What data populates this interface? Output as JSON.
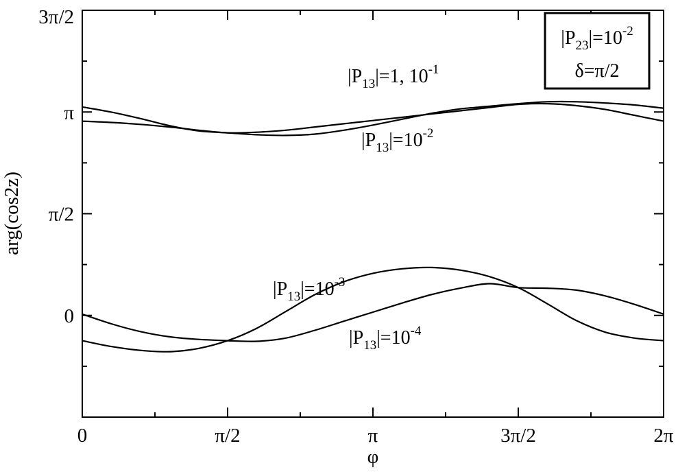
{
  "chart_data": {
    "type": "line",
    "xlabel": "φ",
    "ylabel": "arg(cos2z)",
    "xlim": [
      0,
      6.2832
    ],
    "ylim": [
      -1.5708,
      4.7124
    ],
    "grid": false,
    "x_ticks": [
      {
        "value": 0,
        "label": "0"
      },
      {
        "value": 1.5708,
        "label": "π/2"
      },
      {
        "value": 3.1416,
        "label": "π"
      },
      {
        "value": 4.7124,
        "label": "3π/2"
      },
      {
        "value": 6.2832,
        "label": "2π"
      }
    ],
    "y_ticks": [
      {
        "value": 0,
        "label": "0"
      },
      {
        "value": 1.5708,
        "label": "π/2"
      },
      {
        "value": 3.1416,
        "label": "π"
      },
      {
        "value": 4.7124,
        "label": "3π/2"
      }
    ],
    "legend": {
      "placement": "top-right",
      "line1": {
        "base": "|P",
        "sub": "23",
        "mid": "|=10",
        "sup": "-2"
      },
      "line2": "δ=π/2"
    },
    "annotations": [
      {
        "base": "|P",
        "sub": "13",
        "mid": "|=1, 10",
        "sup": "-1"
      },
      {
        "base": "|P",
        "sub": "13",
        "mid": "|=10",
        "sup": "-2"
      },
      {
        "base": "|P",
        "sub": "13",
        "mid": "|=10",
        "sup": "-3"
      },
      {
        "base": "|P",
        "sub": "13",
        "mid": "|=10",
        "sup": "-4"
      }
    ],
    "series": [
      {
        "x": [
          0,
          0.3142,
          0.6283,
          0.9425,
          1.2566,
          1.5708,
          1.885,
          2.1991,
          2.5133,
          2.8274,
          3.1416,
          3.4558,
          3.7699,
          4.0841,
          4.3982,
          4.7124,
          5.0265,
          5.3407,
          5.6549,
          5.969,
          6.2832
        ],
        "y": [
          3.0,
          2.98,
          2.95,
          2.91,
          2.86,
          2.82,
          2.83,
          2.86,
          2.91,
          2.96,
          3.01,
          3.06,
          3.11,
          3.16,
          3.21,
          3.26,
          3.27,
          3.24,
          3.18,
          3.09,
          3.0
        ]
      },
      {
        "x": [
          0,
          0.3142,
          0.6283,
          0.9425,
          1.2566,
          1.5708,
          1.885,
          2.1991,
          2.5133,
          2.8274,
          3.1416,
          3.4558,
          3.7699,
          4.0841,
          4.3982,
          4.7124,
          5.0265,
          5.3407,
          5.6549,
          5.969,
          6.2832
        ],
        "y": [
          3.22,
          3.14,
          3.04,
          2.93,
          2.85,
          2.82,
          2.79,
          2.78,
          2.8,
          2.86,
          2.94,
          3.03,
          3.12,
          3.19,
          3.23,
          3.27,
          3.3,
          3.3,
          3.28,
          3.25,
          3.2
        ]
      },
      {
        "x": [
          0,
          0.3142,
          0.6283,
          0.9425,
          1.2566,
          1.5708,
          1.885,
          2.1991,
          2.5133,
          2.8274,
          3.1416,
          3.4558,
          3.7699,
          4.0841,
          4.3982,
          4.7124,
          5.0265,
          5.3407,
          5.6549,
          5.969,
          6.2832
        ],
        "y": [
          -0.39,
          -0.48,
          -0.54,
          -0.56,
          -0.51,
          -0.39,
          -0.2,
          0.06,
          0.32,
          0.52,
          0.65,
          0.72,
          0.74,
          0.7,
          0.6,
          0.43,
          0.18,
          -0.08,
          -0.26,
          -0.35,
          -0.39
        ]
      },
      {
        "x": [
          0,
          0.3142,
          0.6283,
          0.9425,
          1.2566,
          1.5708,
          1.885,
          2.1991,
          2.5133,
          2.8274,
          3.1416,
          3.4558,
          3.7699,
          4.0841,
          4.3982,
          4.7124,
          5.0265,
          5.3407,
          5.6549,
          5.969,
          6.2832
        ],
        "y": [
          0.02,
          -0.13,
          -0.25,
          -0.33,
          -0.37,
          -0.39,
          -0.4,
          -0.35,
          -0.23,
          -0.09,
          0.05,
          0.19,
          0.32,
          0.42,
          0.49,
          0.43,
          0.42,
          0.39,
          0.3,
          0.17,
          0.02
        ]
      }
    ]
  }
}
